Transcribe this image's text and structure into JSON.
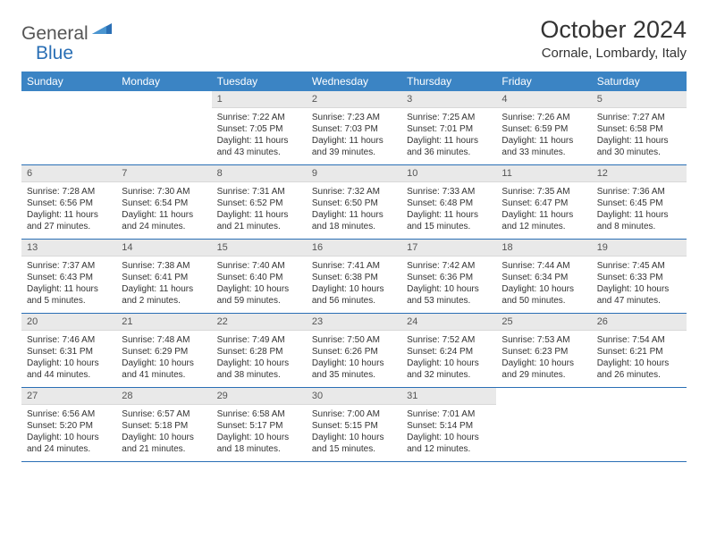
{
  "logo": {
    "text1": "General",
    "text2": "Blue"
  },
  "title": "October 2024",
  "location": "Cornale, Lombardy, Italy",
  "day_names": [
    "Sunday",
    "Monday",
    "Tuesday",
    "Wednesday",
    "Thursday",
    "Friday",
    "Saturday"
  ],
  "colors": {
    "header_bg": "#3b84c4",
    "header_text": "#ffffff",
    "daynum_bg": "#e9e9e9",
    "week_border": "#2a6fb5",
    "logo_blue": "#2a6fb5",
    "text": "#333333"
  },
  "weeks": [
    [
      null,
      null,
      {
        "n": "1",
        "sr": "Sunrise: 7:22 AM",
        "ss": "Sunset: 7:05 PM",
        "dl": "Daylight: 11 hours and 43 minutes."
      },
      {
        "n": "2",
        "sr": "Sunrise: 7:23 AM",
        "ss": "Sunset: 7:03 PM",
        "dl": "Daylight: 11 hours and 39 minutes."
      },
      {
        "n": "3",
        "sr": "Sunrise: 7:25 AM",
        "ss": "Sunset: 7:01 PM",
        "dl": "Daylight: 11 hours and 36 minutes."
      },
      {
        "n": "4",
        "sr": "Sunrise: 7:26 AM",
        "ss": "Sunset: 6:59 PM",
        "dl": "Daylight: 11 hours and 33 minutes."
      },
      {
        "n": "5",
        "sr": "Sunrise: 7:27 AM",
        "ss": "Sunset: 6:58 PM",
        "dl": "Daylight: 11 hours and 30 minutes."
      }
    ],
    [
      {
        "n": "6",
        "sr": "Sunrise: 7:28 AM",
        "ss": "Sunset: 6:56 PM",
        "dl": "Daylight: 11 hours and 27 minutes."
      },
      {
        "n": "7",
        "sr": "Sunrise: 7:30 AM",
        "ss": "Sunset: 6:54 PM",
        "dl": "Daylight: 11 hours and 24 minutes."
      },
      {
        "n": "8",
        "sr": "Sunrise: 7:31 AM",
        "ss": "Sunset: 6:52 PM",
        "dl": "Daylight: 11 hours and 21 minutes."
      },
      {
        "n": "9",
        "sr": "Sunrise: 7:32 AM",
        "ss": "Sunset: 6:50 PM",
        "dl": "Daylight: 11 hours and 18 minutes."
      },
      {
        "n": "10",
        "sr": "Sunrise: 7:33 AM",
        "ss": "Sunset: 6:48 PM",
        "dl": "Daylight: 11 hours and 15 minutes."
      },
      {
        "n": "11",
        "sr": "Sunrise: 7:35 AM",
        "ss": "Sunset: 6:47 PM",
        "dl": "Daylight: 11 hours and 12 minutes."
      },
      {
        "n": "12",
        "sr": "Sunrise: 7:36 AM",
        "ss": "Sunset: 6:45 PM",
        "dl": "Daylight: 11 hours and 8 minutes."
      }
    ],
    [
      {
        "n": "13",
        "sr": "Sunrise: 7:37 AM",
        "ss": "Sunset: 6:43 PM",
        "dl": "Daylight: 11 hours and 5 minutes."
      },
      {
        "n": "14",
        "sr": "Sunrise: 7:38 AM",
        "ss": "Sunset: 6:41 PM",
        "dl": "Daylight: 11 hours and 2 minutes."
      },
      {
        "n": "15",
        "sr": "Sunrise: 7:40 AM",
        "ss": "Sunset: 6:40 PM",
        "dl": "Daylight: 10 hours and 59 minutes."
      },
      {
        "n": "16",
        "sr": "Sunrise: 7:41 AM",
        "ss": "Sunset: 6:38 PM",
        "dl": "Daylight: 10 hours and 56 minutes."
      },
      {
        "n": "17",
        "sr": "Sunrise: 7:42 AM",
        "ss": "Sunset: 6:36 PM",
        "dl": "Daylight: 10 hours and 53 minutes."
      },
      {
        "n": "18",
        "sr": "Sunrise: 7:44 AM",
        "ss": "Sunset: 6:34 PM",
        "dl": "Daylight: 10 hours and 50 minutes."
      },
      {
        "n": "19",
        "sr": "Sunrise: 7:45 AM",
        "ss": "Sunset: 6:33 PM",
        "dl": "Daylight: 10 hours and 47 minutes."
      }
    ],
    [
      {
        "n": "20",
        "sr": "Sunrise: 7:46 AM",
        "ss": "Sunset: 6:31 PM",
        "dl": "Daylight: 10 hours and 44 minutes."
      },
      {
        "n": "21",
        "sr": "Sunrise: 7:48 AM",
        "ss": "Sunset: 6:29 PM",
        "dl": "Daylight: 10 hours and 41 minutes."
      },
      {
        "n": "22",
        "sr": "Sunrise: 7:49 AM",
        "ss": "Sunset: 6:28 PM",
        "dl": "Daylight: 10 hours and 38 minutes."
      },
      {
        "n": "23",
        "sr": "Sunrise: 7:50 AM",
        "ss": "Sunset: 6:26 PM",
        "dl": "Daylight: 10 hours and 35 minutes."
      },
      {
        "n": "24",
        "sr": "Sunrise: 7:52 AM",
        "ss": "Sunset: 6:24 PM",
        "dl": "Daylight: 10 hours and 32 minutes."
      },
      {
        "n": "25",
        "sr": "Sunrise: 7:53 AM",
        "ss": "Sunset: 6:23 PM",
        "dl": "Daylight: 10 hours and 29 minutes."
      },
      {
        "n": "26",
        "sr": "Sunrise: 7:54 AM",
        "ss": "Sunset: 6:21 PM",
        "dl": "Daylight: 10 hours and 26 minutes."
      }
    ],
    [
      {
        "n": "27",
        "sr": "Sunrise: 6:56 AM",
        "ss": "Sunset: 5:20 PM",
        "dl": "Daylight: 10 hours and 24 minutes."
      },
      {
        "n": "28",
        "sr": "Sunrise: 6:57 AM",
        "ss": "Sunset: 5:18 PM",
        "dl": "Daylight: 10 hours and 21 minutes."
      },
      {
        "n": "29",
        "sr": "Sunrise: 6:58 AM",
        "ss": "Sunset: 5:17 PM",
        "dl": "Daylight: 10 hours and 18 minutes."
      },
      {
        "n": "30",
        "sr": "Sunrise: 7:00 AM",
        "ss": "Sunset: 5:15 PM",
        "dl": "Daylight: 10 hours and 15 minutes."
      },
      {
        "n": "31",
        "sr": "Sunrise: 7:01 AM",
        "ss": "Sunset: 5:14 PM",
        "dl": "Daylight: 10 hours and 12 minutes."
      },
      null,
      null
    ]
  ]
}
